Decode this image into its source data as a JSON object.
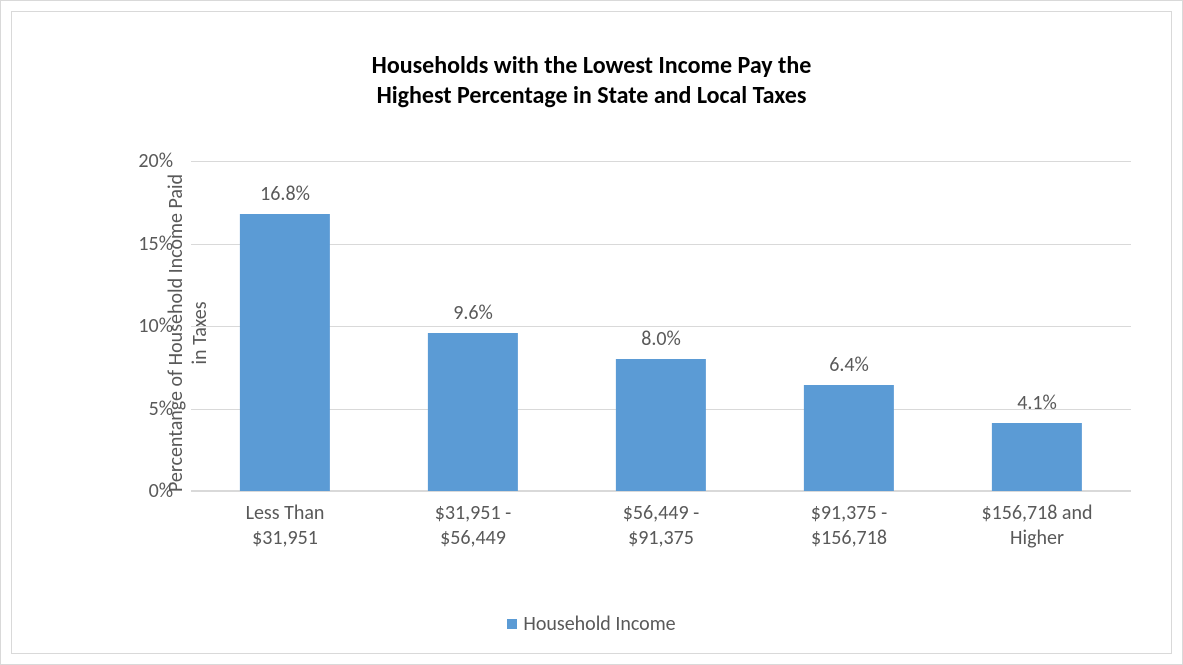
{
  "chart": {
    "type": "bar",
    "title_line1": "Households with the Lowest Income Pay the",
    "title_line2": "Highest Percentage in State and Local Taxes",
    "title_fontsize": 24,
    "title_color": "#000000",
    "title_fontweight": "bold",
    "ylabel_line1": "Percentange of Household Income Paid",
    "ylabel_line2": "in Taxes",
    "ylabel_fontsize": 20,
    "ylabel_color": "#595959",
    "categories": [
      {
        "line1": "Less Than",
        "line2": "$31,951"
      },
      {
        "line1": "$31,951 -",
        "line2": "$56,449"
      },
      {
        "line1": "$56,449 -",
        "line2": "$91,375"
      },
      {
        "line1": "$91,375 -",
        "line2": "$156,718"
      },
      {
        "line1": "$156,718 and",
        "line2": "Higher"
      }
    ],
    "values": [
      16.8,
      9.6,
      8.0,
      6.4,
      4.1
    ],
    "value_labels": [
      "16.8%",
      "9.6%",
      "8.0%",
      "6.4%",
      "4.1%"
    ],
    "bar_color": "#5b9bd5",
    "bar_width_pct": 48,
    "ylim_min": 0,
    "ylim_max": 20,
    "ytick_step": 5,
    "ytick_labels": [
      "0%",
      "5%",
      "10%",
      "15%",
      "20%"
    ],
    "tick_fontsize": 20,
    "value_label_fontsize": 20,
    "xtick_fontsize": 20,
    "grid_color": "#d9d9d9",
    "axis_color": "#d9d9d9",
    "background_color": "#ffffff",
    "border_color": "#d9d9d9",
    "legend_label": "Household Income",
    "legend_fontsize": 20,
    "legend_color": "#595959",
    "legend_swatch_color": "#5b9bd5"
  }
}
